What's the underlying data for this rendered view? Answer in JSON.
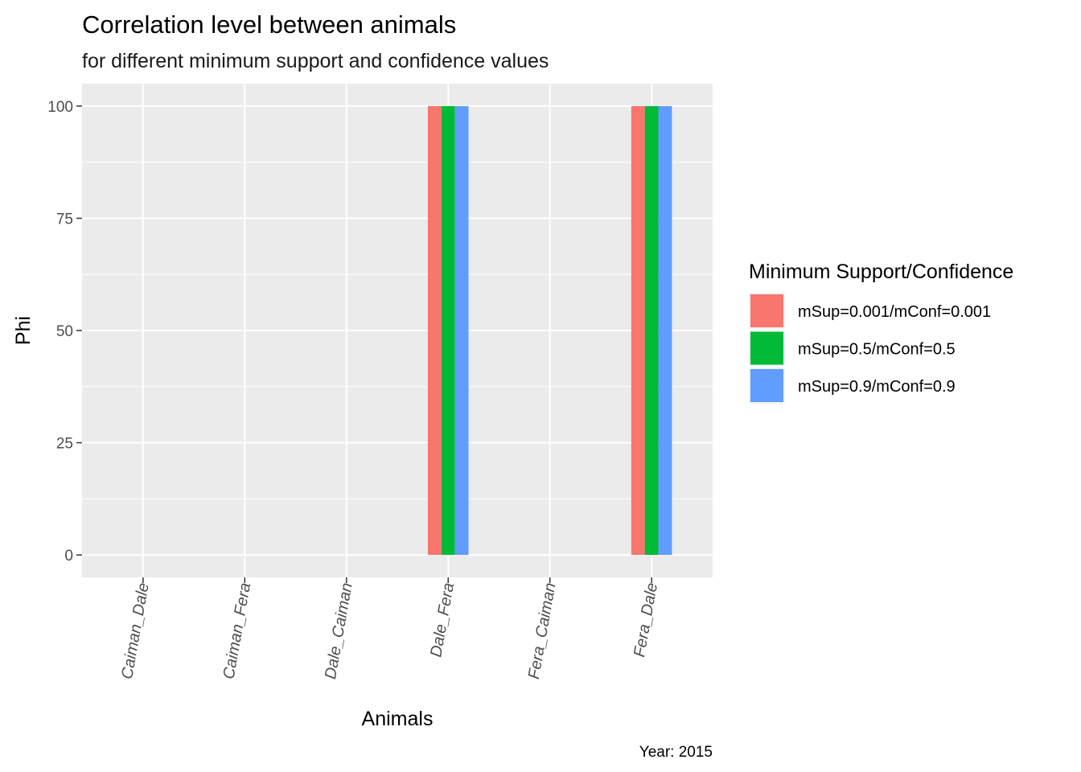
{
  "chart_data": {
    "type": "bar",
    "title": "Correlation level between animals",
    "subtitle": "for different minimum support and confidence values",
    "xlabel": "Animals",
    "ylabel": "Phi",
    "caption": "Year: 2015",
    "categories": [
      "Caiman_Dale",
      "Caiman_Fera",
      "Dale_Caiman",
      "Dale_Fera",
      "Fera_Caiman",
      "Fera_Dale"
    ],
    "series": [
      {
        "name": "mSup=0.001/mConf=0.001",
        "color": "#F8766D",
        "values": [
          0,
          0,
          0,
          100,
          0,
          100
        ]
      },
      {
        "name": "mSup=0.5/mConf=0.5",
        "color": "#00BA38",
        "values": [
          0,
          0,
          0,
          100,
          0,
          100
        ]
      },
      {
        "name": "mSup=0.9/mConf=0.9",
        "color": "#619CFF",
        "values": [
          0,
          0,
          0,
          100,
          0,
          100
        ]
      }
    ],
    "ylim": [
      -5,
      105
    ],
    "yticks": [
      0,
      25,
      50,
      75,
      100
    ],
    "ytick_labels": [
      "0",
      "25",
      "50",
      "75",
      "100"
    ],
    "legend": {
      "title": "Minimum Support/Confidence",
      "position": "right"
    },
    "grid": true,
    "panel_background": "#EBEBEB",
    "grid_color": "#FFFFFF"
  }
}
